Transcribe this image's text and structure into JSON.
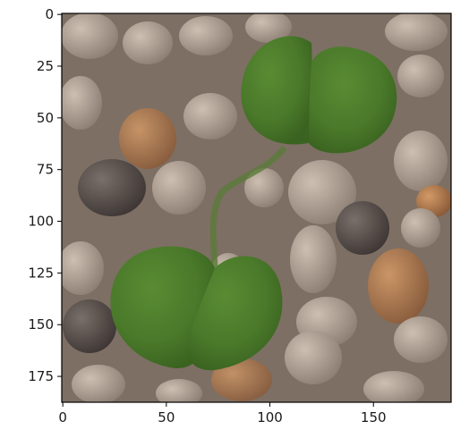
{
  "image": {
    "subject": "plant-seedling-on-gravel",
    "colors": {
      "leaf": "#4c7a2c",
      "leaf_dark": "#3d6722",
      "gravel_light": "#b8a898",
      "gravel_dark": "#5e534c",
      "soil": "#8a7766",
      "axis": "#000000"
    }
  },
  "axes": {
    "x_ticks": [
      "0",
      "50",
      "100",
      "150"
    ],
    "y_ticks": [
      "0",
      "25",
      "50",
      "75",
      "100",
      "125",
      "150",
      "175"
    ],
    "x_range": [
      -0.5,
      187.5
    ],
    "y_range": [
      187.5,
      -0.5
    ]
  }
}
